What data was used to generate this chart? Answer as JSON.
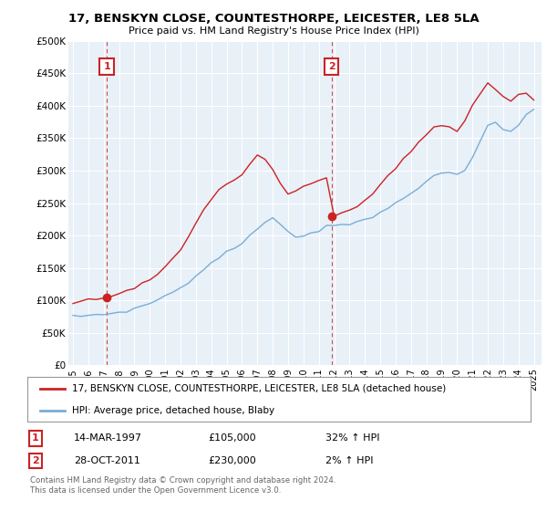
{
  "title": "17, BENSKYN CLOSE, COUNTESTHORPE, LEICESTER, LE8 5LA",
  "subtitle": "Price paid vs. HM Land Registry's House Price Index (HPI)",
  "ylabel_ticks": [
    "£0",
    "£50K",
    "£100K",
    "£150K",
    "£200K",
    "£250K",
    "£300K",
    "£350K",
    "£400K",
    "£450K",
    "£500K"
  ],
  "ytick_values": [
    0,
    50000,
    100000,
    150000,
    200000,
    250000,
    300000,
    350000,
    400000,
    450000,
    500000
  ],
  "ylim": [
    0,
    500000
  ],
  "xlim_start": 1994.7,
  "xlim_end": 2025.5,
  "sale1": {
    "date_num": 1997.2,
    "price": 105000,
    "label": "1",
    "date_str": "14-MAR-1997",
    "price_str": "£105,000",
    "pct": "32% ↑ HPI"
  },
  "sale2": {
    "date_num": 2011.83,
    "price": 230000,
    "label": "2",
    "date_str": "28-OCT-2011",
    "price_str": "£230,000",
    "pct": "2% ↑ HPI"
  },
  "legend_line1": "17, BENSKYN CLOSE, COUNTESTHORPE, LEICESTER, LE8 5LA (detached house)",
  "legend_line2": "HPI: Average price, detached house, Blaby",
  "footer1": "Contains HM Land Registry data © Crown copyright and database right 2024.",
  "footer2": "This data is licensed under the Open Government Licence v3.0.",
  "hpi_color": "#7aaed6",
  "price_color": "#cc2222",
  "chart_bg": "#e8f0f8",
  "background_color": "#ffffff",
  "grid_color": "#ffffff",
  "xtick_years": [
    1995,
    1996,
    1997,
    1998,
    1999,
    2000,
    2001,
    2002,
    2003,
    2004,
    2005,
    2006,
    2007,
    2008,
    2009,
    2010,
    2011,
    2012,
    2013,
    2014,
    2015,
    2016,
    2017,
    2018,
    2019,
    2020,
    2021,
    2022,
    2023,
    2024,
    2025
  ],
  "hpi_years": [
    1995.0,
    1995.5,
    1996.0,
    1996.5,
    1997.0,
    1997.5,
    1998.0,
    1998.5,
    1999.0,
    1999.5,
    2000.0,
    2000.5,
    2001.0,
    2001.5,
    2002.0,
    2002.5,
    2003.0,
    2003.5,
    2004.0,
    2004.5,
    2005.0,
    2005.5,
    2006.0,
    2006.5,
    2007.0,
    2007.5,
    2008.0,
    2008.5,
    2009.0,
    2009.5,
    2010.0,
    2010.5,
    2011.0,
    2011.5,
    2012.0,
    2012.5,
    2013.0,
    2013.5,
    2014.0,
    2014.5,
    2015.0,
    2015.5,
    2016.0,
    2016.5,
    2017.0,
    2017.5,
    2018.0,
    2018.5,
    2019.0,
    2019.5,
    2020.0,
    2020.5,
    2021.0,
    2021.5,
    2022.0,
    2022.5,
    2023.0,
    2023.5,
    2024.0,
    2024.5,
    2025.0
  ],
  "hpi_prices": [
    75000,
    76000,
    77000,
    78000,
    79000,
    80000,
    82000,
    84000,
    87000,
    91000,
    96000,
    101000,
    107000,
    113000,
    120000,
    128000,
    137000,
    147000,
    158000,
    167000,
    174000,
    180000,
    188000,
    198000,
    210000,
    222000,
    228000,
    220000,
    205000,
    198000,
    200000,
    203000,
    208000,
    215000,
    218000,
    218000,
    218000,
    220000,
    223000,
    228000,
    235000,
    242000,
    250000,
    258000,
    267000,
    275000,
    283000,
    290000,
    296000,
    298000,
    292000,
    300000,
    320000,
    345000,
    370000,
    375000,
    365000,
    360000,
    370000,
    385000,
    395000
  ],
  "prop_years": [
    1995.0,
    1995.5,
    1996.0,
    1996.5,
    1997.0,
    1997.5,
    1998.0,
    1998.5,
    1999.0,
    1999.5,
    2000.0,
    2000.5,
    2001.0,
    2001.5,
    2002.0,
    2002.5,
    2003.0,
    2003.5,
    2004.0,
    2004.5,
    2005.0,
    2005.5,
    2006.0,
    2006.5,
    2007.0,
    2007.5,
    2008.0,
    2008.5,
    2009.0,
    2009.5,
    2010.0,
    2010.5,
    2011.0,
    2011.5,
    2012.0,
    2012.5,
    2013.0,
    2013.5,
    2014.0,
    2014.5,
    2015.0,
    2015.5,
    2016.0,
    2016.5,
    2017.0,
    2017.5,
    2018.0,
    2018.5,
    2019.0,
    2019.5,
    2020.0,
    2020.5,
    2021.0,
    2021.5,
    2022.0,
    2022.5,
    2023.0,
    2023.5,
    2024.0,
    2024.5,
    2025.0
  ],
  "prop_prices": [
    98000,
    99000,
    100000,
    102000,
    105000,
    108000,
    112000,
    116000,
    120000,
    125000,
    132000,
    140000,
    150000,
    163000,
    178000,
    197000,
    218000,
    240000,
    258000,
    270000,
    278000,
    285000,
    295000,
    310000,
    325000,
    318000,
    300000,
    278000,
    263000,
    268000,
    275000,
    280000,
    285000,
    290000,
    230000,
    232000,
    238000,
    245000,
    255000,
    265000,
    278000,
    292000,
    305000,
    318000,
    330000,
    342000,
    355000,
    365000,
    370000,
    368000,
    360000,
    375000,
    400000,
    420000,
    435000,
    425000,
    415000,
    408000,
    415000,
    420000,
    410000
  ]
}
